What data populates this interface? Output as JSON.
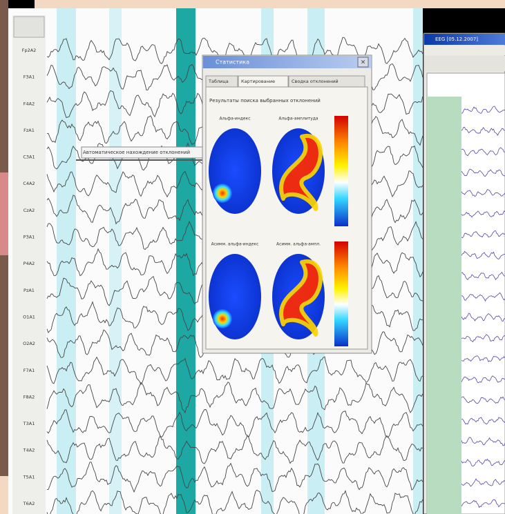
{
  "eeg": {
    "channels": [
      "Fp2A2",
      "F3A1",
      "F4A2",
      "FzA1",
      "C3A1",
      "C4A2",
      "CzA2",
      "P3A1",
      "P4A2",
      "PzA1",
      "O1A1",
      "O2A2",
      "F7A1",
      "F8A2",
      "T3A1",
      "T4A2",
      "T5A1",
      "T6A2"
    ],
    "annotation": "Автоматическое нахождение отклонений"
  },
  "dialog": {
    "title": "Статистика",
    "tabs": [
      "Таблица",
      "Картирование",
      "Сводка отклонений"
    ],
    "subtitle": "Результаты поиска выбранных отклонений",
    "maps": [
      "Альфа-индекс",
      "Альфа-амплитуда",
      "Асимм. альфа-индекс",
      "Асимм. альфа-ампл."
    ]
  },
  "side_window": {
    "title": "EEG [05.12.2007]"
  }
}
